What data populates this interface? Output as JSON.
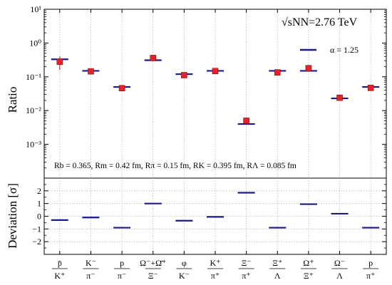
{
  "chart_data": {
    "type": "scatter",
    "annotation_energy": "√sNN=2.76 TeV",
    "legend": {
      "label": "α = 1.25",
      "color": "#1a1a8c",
      "placement": "top-right"
    },
    "params_text": "Rb = 0.365, Rm = 0.42 fm, Rπ = 0.15 fm, RK = 0.395 fm, RΛ = 0.085 fm",
    "categories": [
      {
        "num": "p̄",
        "den": "K⁺"
      },
      {
        "num": "K⁻",
        "den": "π⁻"
      },
      {
        "num": "p",
        "den": "π⁻"
      },
      {
        "num": "Ω⁻+Ω̄⁺",
        "den": "Ξ⁻"
      },
      {
        "num": "φ",
        "den": "K⁻"
      },
      {
        "num": "K⁺",
        "den": "π⁺"
      },
      {
        "num": "Ξ⁻",
        "den": "π⁺"
      },
      {
        "num": "Ξ⁺",
        "den": "Λ"
      },
      {
        "num": "Ω⁺",
        "den": "Ξ⁺"
      },
      {
        "num": "Ω⁻",
        "den": "Λ"
      },
      {
        "num": "p",
        "den": "π⁺"
      }
    ],
    "top_panel": {
      "ylabel": "Ratio",
      "yscale": "log",
      "ylim": [
        0.0001,
        10
      ],
      "yticks": [
        "10⁻³",
        "10⁻²",
        "10⁻¹",
        "10⁰",
        "10¹"
      ],
      "ytick_values": [
        0.001,
        0.01,
        0.1,
        1,
        10
      ],
      "data": {
        "name": "data",
        "color": "#e8202a",
        "values": [
          0.28,
          0.145,
          0.046,
          0.36,
          0.112,
          0.148,
          0.005,
          0.135,
          0.18,
          0.024,
          0.047
        ],
        "err_low": [
          0.12,
          0.02,
          0.006,
          0.04,
          0.02,
          0.015,
          0.0008,
          0.02,
          0.03,
          0.004,
          0.006
        ],
        "err_high": [
          0.12,
          0.02,
          0.006,
          0.04,
          0.02,
          0.015,
          0.0008,
          0.02,
          0.03,
          0.004,
          0.006
        ]
      },
      "model": {
        "name": "α = 1.25",
        "color": "#1a1a8c",
        "values": [
          0.33,
          0.15,
          0.05,
          0.31,
          0.12,
          0.15,
          0.004,
          0.15,
          0.15,
          0.023,
          0.05
        ]
      }
    },
    "bottom_panel": {
      "ylabel": "Deviation [σ]",
      "ylim": [
        -3,
        3
      ],
      "yticks": [
        -2,
        -1,
        0,
        1,
        2
      ],
      "grid": true,
      "values": [
        -0.3,
        -0.1,
        -0.9,
        1.0,
        -0.35,
        -0.05,
        1.85,
        -0.9,
        0.95,
        0.2,
        -0.9
      ]
    }
  }
}
